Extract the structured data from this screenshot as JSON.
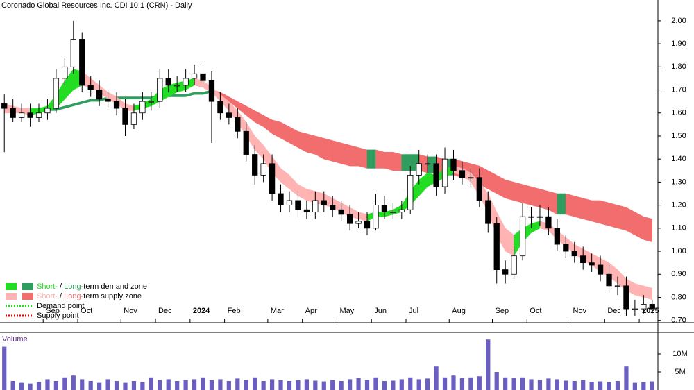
{
  "chart_data": [
    {
      "type": "candlestick",
      "title": "Coronado Global Resources Inc. CDI 10:1 (CRN) - Daily",
      "categories": [
        null,
        null,
        null,
        null,
        null,
        "Sep",
        null,
        null,
        null,
        "Oct",
        null,
        null,
        null,
        null,
        "Nov",
        null,
        null,
        null,
        "Dec",
        null,
        null,
        null,
        "2024",
        null,
        null,
        null,
        "Feb",
        null,
        null,
        null,
        null,
        "Mar",
        null,
        null,
        null,
        "Apr",
        null,
        null,
        null,
        "May",
        null,
        null,
        null,
        "Jun",
        null,
        null,
        null,
        "Jul",
        null,
        null,
        null,
        null,
        "Aug",
        null,
        null,
        null,
        null,
        "Sep",
        null,
        null,
        null,
        "Oct",
        null,
        null,
        null,
        null,
        "Nov",
        null,
        null,
        null,
        "Dec",
        null,
        null,
        null,
        "2025",
        null
      ],
      "open": [
        1.64,
        1.62,
        1.58,
        1.6,
        1.58,
        1.6,
        1.62,
        1.75,
        1.8,
        1.92,
        1.72,
        1.7,
        1.66,
        1.65,
        1.62,
        1.55,
        1.6,
        1.65,
        1.65,
        1.75,
        1.72,
        1.72,
        1.75,
        1.77,
        1.74,
        1.65,
        1.6,
        1.58,
        1.52,
        1.42,
        1.33,
        1.38,
        1.25,
        1.2,
        1.22,
        1.18,
        1.17,
        1.22,
        1.2,
        1.18,
        1.16,
        1.12,
        1.13,
        1.1,
        1.2,
        1.17,
        1.17,
        1.18,
        1.33,
        1.38,
        1.38,
        1.28,
        1.4,
        1.35,
        1.32,
        1.32,
        1.22,
        1.12,
        0.92,
        0.9,
        0.98,
        1.15,
        1.15,
        1.15,
        1.1,
        1.03,
        1.0,
        0.98,
        0.95,
        0.94,
        0.9,
        0.85,
        0.85,
        0.75,
        0.75,
        0.77
      ],
      "high": [
        1.68,
        1.66,
        1.64,
        1.64,
        1.64,
        1.66,
        1.79,
        1.84,
        2.0,
        1.95,
        1.76,
        1.74,
        1.7,
        1.69,
        1.66,
        1.64,
        1.69,
        1.69,
        1.79,
        1.79,
        1.76,
        1.79,
        1.81,
        1.81,
        1.78,
        1.69,
        1.64,
        1.62,
        1.56,
        1.46,
        1.42,
        1.42,
        1.29,
        1.26,
        1.26,
        1.22,
        1.26,
        1.26,
        1.24,
        1.22,
        1.2,
        1.17,
        1.17,
        1.25,
        1.24,
        1.21,
        1.22,
        1.37,
        1.44,
        1.42,
        1.42,
        1.45,
        1.44,
        1.39,
        1.36,
        1.36,
        1.26,
        1.15,
        0.96,
        1.02,
        1.21,
        1.19,
        1.2,
        1.19,
        1.14,
        1.07,
        1.04,
        1.02,
        0.99,
        0.98,
        0.94,
        0.89,
        0.89,
        0.79,
        0.81,
        0.79
      ],
      "low": [
        1.43,
        1.56,
        1.56,
        1.54,
        1.56,
        1.57,
        1.6,
        1.72,
        1.77,
        1.69,
        1.67,
        1.63,
        1.62,
        1.59,
        1.5,
        1.53,
        1.57,
        1.61,
        1.62,
        1.69,
        1.69,
        1.69,
        1.72,
        1.71,
        1.47,
        1.57,
        1.55,
        1.49,
        1.39,
        1.29,
        1.3,
        1.22,
        1.17,
        1.17,
        1.15,
        1.14,
        1.14,
        1.17,
        1.15,
        1.13,
        1.09,
        1.1,
        1.07,
        1.09,
        1.14,
        1.14,
        1.14,
        1.16,
        1.29,
        1.34,
        1.24,
        1.25,
        1.31,
        1.29,
        1.28,
        1.19,
        1.08,
        0.86,
        0.86,
        0.88,
        0.96,
        1.1,
        1.11,
        1.07,
        1.0,
        0.97,
        0.95,
        0.92,
        0.91,
        0.87,
        0.82,
        0.81,
        0.72,
        0.72,
        0.73,
        0.73
      ],
      "close": [
        1.62,
        1.58,
        1.6,
        1.58,
        1.6,
        1.62,
        1.75,
        1.8,
        1.92,
        1.72,
        1.7,
        1.66,
        1.65,
        1.62,
        1.55,
        1.6,
        1.65,
        1.65,
        1.75,
        1.72,
        1.72,
        1.75,
        1.77,
        1.74,
        1.65,
        1.6,
        1.58,
        1.52,
        1.42,
        1.33,
        1.38,
        1.25,
        1.2,
        1.22,
        1.18,
        1.17,
        1.22,
        1.2,
        1.18,
        1.16,
        1.12,
        1.13,
        1.1,
        1.2,
        1.17,
        1.17,
        1.18,
        1.33,
        1.38,
        1.38,
        1.28,
        1.4,
        1.35,
        1.32,
        1.32,
        1.22,
        1.12,
        0.92,
        0.9,
        0.98,
        1.15,
        1.15,
        1.15,
        1.1,
        1.03,
        1.0,
        0.98,
        0.95,
        0.94,
        0.9,
        0.85,
        0.85,
        0.75,
        0.75,
        0.77,
        0.75
      ],
      "bands": {
        "long": {
          "upper": [
            null,
            null,
            null,
            1.61,
            1.61,
            1.62,
            1.62,
            1.63,
            1.64,
            1.65,
            1.66,
            1.66,
            1.67,
            1.67,
            1.67,
            1.67,
            1.67,
            1.67,
            1.68,
            1.68,
            1.68,
            1.68,
            1.69,
            1.69,
            1.7,
            1.69,
            1.67,
            1.65,
            1.63,
            1.61,
            1.59,
            1.57,
            1.56,
            1.54,
            1.52,
            1.51,
            1.5,
            1.49,
            1.48,
            1.47,
            1.46,
            1.45,
            1.44,
            1.44,
            1.43,
            1.43,
            1.42,
            1.42,
            1.42,
            1.41,
            1.41,
            1.4,
            1.4,
            1.39,
            1.38,
            1.37,
            1.35,
            1.33,
            1.31,
            1.3,
            1.29,
            1.28,
            1.27,
            1.26,
            1.25,
            1.25,
            1.24,
            1.23,
            1.22,
            1.22,
            1.21,
            1.2,
            1.19,
            1.17,
            1.15,
            1.14
          ],
          "lower": [
            null,
            null,
            null,
            1.6,
            1.6,
            1.61,
            1.61,
            1.62,
            1.63,
            1.64,
            1.65,
            1.65,
            1.66,
            1.66,
            1.66,
            1.66,
            1.66,
            1.66,
            1.67,
            1.67,
            1.67,
            1.67,
            1.68,
            1.68,
            1.69,
            1.67,
            1.65,
            1.62,
            1.59,
            1.56,
            1.54,
            1.51,
            1.49,
            1.47,
            1.45,
            1.43,
            1.42,
            1.4,
            1.39,
            1.38,
            1.37,
            1.37,
            1.36,
            1.36,
            1.36,
            1.35,
            1.35,
            1.35,
            1.35,
            1.34,
            1.34,
            1.33,
            1.33,
            1.32,
            1.31,
            1.29,
            1.27,
            1.25,
            1.23,
            1.22,
            1.21,
            1.2,
            1.19,
            1.18,
            1.16,
            1.16,
            1.15,
            1.14,
            1.13,
            1.12,
            1.11,
            1.1,
            1.09,
            1.07,
            1.05,
            1.04
          ]
        },
        "short": {
          "upper": [
            1.64,
            1.63,
            1.62,
            1.62,
            1.62,
            1.63,
            1.68,
            1.74,
            1.79,
            1.78,
            1.75,
            1.72,
            1.69,
            1.67,
            1.64,
            1.63,
            1.64,
            1.66,
            1.7,
            1.72,
            1.73,
            1.74,
            1.75,
            1.74,
            1.71,
            1.68,
            1.65,
            1.61,
            1.56,
            1.5,
            1.46,
            1.41,
            1.36,
            1.33,
            1.29,
            1.27,
            1.26,
            1.25,
            1.23,
            1.21,
            1.19,
            1.17,
            1.16,
            1.17,
            1.17,
            1.18,
            1.2,
            1.26,
            1.31,
            1.34,
            1.33,
            1.36,
            1.37,
            1.36,
            1.34,
            1.3,
            1.25,
            1.17,
            1.1,
            1.07,
            1.1,
            1.12,
            1.13,
            1.12,
            1.09,
            1.06,
            1.03,
            1.01,
            0.99,
            0.97,
            0.95,
            0.92,
            0.88,
            0.86,
            0.85,
            0.84
          ],
          "lower": [
            1.6,
            1.6,
            1.6,
            1.59,
            1.6,
            1.61,
            1.62,
            1.66,
            1.7,
            1.72,
            1.71,
            1.69,
            1.66,
            1.64,
            1.61,
            1.61,
            1.62,
            1.63,
            1.65,
            1.67,
            1.69,
            1.7,
            1.72,
            1.71,
            1.69,
            1.65,
            1.61,
            1.56,
            1.5,
            1.44,
            1.4,
            1.34,
            1.3,
            1.27,
            1.24,
            1.22,
            1.21,
            1.2,
            1.19,
            1.17,
            1.15,
            1.14,
            1.13,
            1.15,
            1.15,
            1.16,
            1.17,
            1.2,
            1.24,
            1.28,
            1.3,
            1.32,
            1.34,
            1.33,
            1.3,
            1.24,
            1.17,
            1.07,
            1.0,
            0.98,
            1.04,
            1.08,
            1.1,
            1.09,
            1.05,
            1.02,
            0.99,
            0.96,
            0.94,
            0.91,
            0.89,
            0.86,
            0.83,
            0.81,
            0.8,
            0.79
          ]
        }
      },
      "legend": [
        {
          "swatches": [
            "#22dd22",
            "#2e9d5e"
          ],
          "parts": [
            {
              "text": "Short-",
              "color": "#22dd22"
            },
            {
              "text": " / "
            },
            {
              "text": "Long-",
              "color": "#2e9d5e"
            },
            {
              "text": "term demand zone"
            }
          ]
        },
        {
          "swatches": [
            "#ffb3b3",
            "#f26d6d"
          ],
          "parts": [
            {
              "text": "Short-",
              "color": "#ffb3b3"
            },
            {
              "text": " / "
            },
            {
              "text": "Long-",
              "color": "#f26d6d"
            },
            {
              "text": "term supply zone"
            }
          ]
        },
        {
          "dots": "#22dd22",
          "parts": [
            {
              "text": "Demand point"
            }
          ]
        },
        {
          "dots": "#dd0000",
          "parts": [
            {
              "text": "Supply point"
            }
          ]
        }
      ],
      "ylim": [
        0.69,
        2.09
      ],
      "yticks": [
        {
          "value": 0.7,
          "label": "0.70"
        },
        {
          "value": 0.8,
          "label": "0.80"
        },
        {
          "value": 0.9,
          "label": "0.90"
        },
        {
          "value": 1.0,
          "label": "1.00"
        },
        {
          "value": 1.1,
          "label": "1.10"
        },
        {
          "value": 1.2,
          "label": "1.20"
        },
        {
          "value": 1.3,
          "label": "1.30"
        },
        {
          "value": 1.4,
          "label": "1.40"
        },
        {
          "value": 1.5,
          "label": "1.50"
        },
        {
          "value": 1.6,
          "label": "1.60"
        },
        {
          "value": 1.7,
          "label": "1.70"
        },
        {
          "value": 1.8,
          "label": "1.80"
        },
        {
          "value": 1.9,
          "label": "1.90"
        },
        {
          "value": 2.0,
          "label": "2.00"
        }
      ]
    },
    {
      "type": "bar",
      "title": "Volume",
      "color": "#6a5fc0",
      "values": [
        12000000,
        2500000,
        2000000,
        1800000,
        2200000,
        3000000,
        2500000,
        3500000,
        4000000,
        3000000,
        2500000,
        2000000,
        3000000,
        2500000,
        2000000,
        2500000,
        2200000,
        3500000,
        2800000,
        3000000,
        2500000,
        2800000,
        3000000,
        3500000,
        2800000,
        3000000,
        2500000,
        3200000,
        2800000,
        3500000,
        2500000,
        3000000,
        2800000,
        2500000,
        2700000,
        3000000,
        2600000,
        2400000,
        2800000,
        2500000,
        3000000,
        3300000,
        2800000,
        3500000,
        2500000,
        2600000,
        3000000,
        3500000,
        3000000,
        3200000,
        6500000,
        3500000,
        4000000,
        3300000,
        3500000,
        3800000,
        14000000,
        5000000,
        3500000,
        3300000,
        3500000,
        3000000,
        2800000,
        3200000,
        3000000,
        2600000,
        2500000,
        2800000,
        2300000,
        2400000,
        2200000,
        2500000,
        6500000,
        2000000,
        2200000,
        2400000
      ],
      "ylim": [
        0,
        15000000
      ],
      "yticks": [
        {
          "value": 5000000,
          "label": "5M"
        },
        {
          "value": 10000000,
          "label": "10M"
        }
      ]
    }
  ]
}
